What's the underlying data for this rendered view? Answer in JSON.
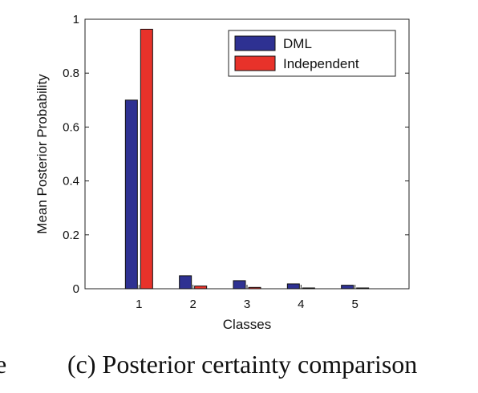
{
  "caption": "(c) Posterior certainty comparison",
  "edge_fragment": "e",
  "chart_data": {
    "type": "bar",
    "categories": [
      "1",
      "2",
      "3",
      "4",
      "5"
    ],
    "series": [
      {
        "name": "DML",
        "values": [
          0.7,
          0.048,
          0.03,
          0.018,
          0.013
        ],
        "color": "#2e3192"
      },
      {
        "name": "Independent",
        "values": [
          0.963,
          0.01,
          0.005,
          0.003,
          0.002
        ],
        "color": "#e8322a"
      }
    ],
    "title": "",
    "xlabel": "Classes",
    "ylabel": "Mean Posterior Probability",
    "ylim": [
      0,
      1
    ],
    "yticks": [
      "0",
      "0.2",
      "0.4",
      "0.6",
      "0.8",
      "1"
    ],
    "legend_placement": "top-right",
    "grid": false
  }
}
